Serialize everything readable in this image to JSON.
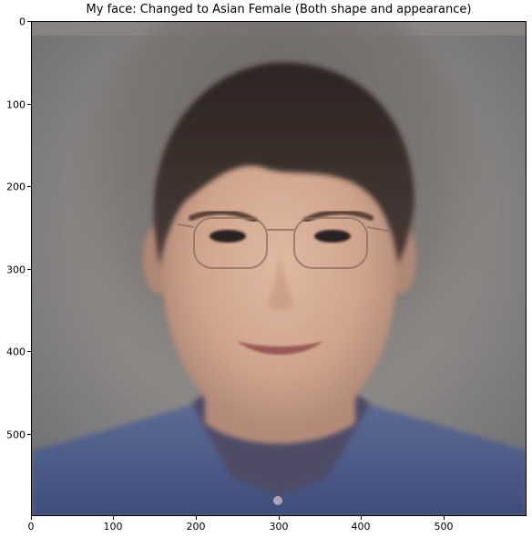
{
  "chart_data": {
    "type": "image",
    "title": "My face: Changed to Asian Female (Both shape and appearance)",
    "xlabel": "",
    "ylabel": "",
    "xlim": [
      0,
      600
    ],
    "ylim": [
      600,
      0
    ],
    "x_ticks": [
      0,
      100,
      200,
      300,
      400,
      500
    ],
    "y_ticks": [
      0,
      100,
      200,
      300,
      400,
      500
    ],
    "image_description": "Composite portrait of a face with short dark hair and thin-rimmed glasses, blurred gray background, blue collared shirt"
  },
  "colors": {
    "background": "#8a8785",
    "shirt": "#4a5a86",
    "skin": "#c9a08a",
    "hair": "#3a2e2a"
  }
}
